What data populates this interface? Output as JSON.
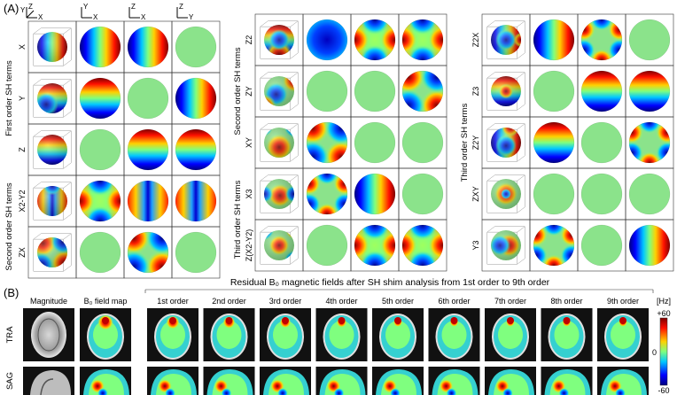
{
  "panel_a": {
    "label": "(A)",
    "axis_icons": [
      {
        "top": "Z",
        "right": "X",
        "diag": "Y"
      },
      {
        "top": "Y",
        "right": "X"
      },
      {
        "top": "Z",
        "right": "X"
      },
      {
        "top": "Z",
        "right": "Y"
      }
    ],
    "groups": [
      {
        "title": "First order SH terms",
        "rows": [
          {
            "label": "X",
            "sphere": "x",
            "views": [
              "x",
              "x",
              "flat"
            ]
          },
          {
            "label": "Y",
            "sphere": "y",
            "views": [
              "y",
              "flat",
              "x"
            ]
          },
          {
            "label": "Z",
            "sphere": "z",
            "views": [
              "flat",
              "y",
              "y"
            ]
          }
        ]
      },
      {
        "title": "Second order SH terms",
        "rows": [
          {
            "label": "X2-Y2",
            "sphere": "quad",
            "views": [
              "quad",
              "xx",
              "xx"
            ]
          },
          {
            "label": "ZX",
            "sphere": "zx",
            "views": [
              "flat",
              "diag",
              "flat"
            ]
          }
        ]
      },
      {
        "title": "Second order SH terms",
        "rows": [
          {
            "label": "Z2",
            "sphere": "z2",
            "views": [
              "radial",
              "quad",
              "quad"
            ]
          },
          {
            "label": "ZY",
            "sphere": "zy",
            "views": [
              "flat",
              "flat",
              "diag"
            ]
          },
          {
            "label": "XY",
            "sphere": "xy",
            "views": [
              "diag",
              "flat",
              "flat"
            ]
          }
        ]
      },
      {
        "title": "Third order SH terms",
        "rows": [
          {
            "label": "X3",
            "sphere": "x3",
            "views": [
              "hex",
              "x",
              "flat"
            ]
          },
          {
            "label": "Z(X2-Y2)",
            "sphere": "zq",
            "views": [
              "flat",
              "quad",
              "quad"
            ]
          }
        ]
      },
      {
        "title": "Third order SH terms",
        "rows": [
          {
            "label": "Z2X",
            "sphere": "z2x",
            "views": [
              "x",
              "hex",
              "flat"
            ]
          },
          {
            "label": "Z3",
            "sphere": "z3",
            "views": [
              "flat",
              "y",
              "y"
            ]
          },
          {
            "label": "Z2Y",
            "sphere": "z2y",
            "views": [
              "y",
              "flat",
              "hex"
            ]
          },
          {
            "label": "ZXY",
            "sphere": "zxy",
            "views": [
              "flat",
              "flat",
              "flat"
            ]
          },
          {
            "label": "Y3",
            "sphere": "y3",
            "views": [
              "hex",
              "flat",
              "x"
            ]
          }
        ]
      }
    ]
  },
  "panel_b": {
    "label": "(B)",
    "title": "Residual B₀ magnetic fields after SH shim analysis from 1st order to 9th order",
    "col_magnitude": "Magnitude",
    "col_fieldmap": "B₀ field map",
    "orders": [
      "1st order",
      "2nd order",
      "3rd order",
      "4th order",
      "5th order",
      "6th order",
      "7th order",
      "8th order",
      "9th order"
    ],
    "rows": [
      "TRA",
      "SAG"
    ],
    "colorbar": {
      "unit": "[Hz]",
      "max": "+60",
      "mid": "0",
      "min": "-60"
    }
  },
  "colors": {
    "jet_low": "#00007f",
    "jet_mid": "#7fff7f",
    "jet_high": "#7f0000",
    "flat": "#8be38b"
  }
}
